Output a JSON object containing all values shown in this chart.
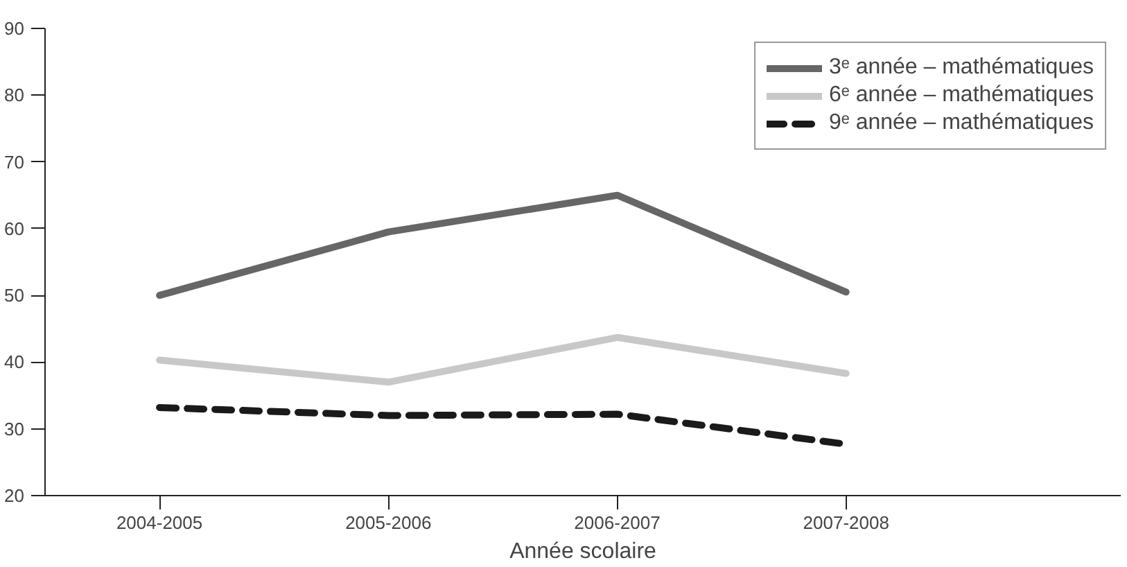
{
  "chart_data": {
    "type": "line",
    "xlabel": "Année scolaire",
    "categories": [
      "2004-2005",
      "2005-2006",
      "2006-2007",
      "2007-2008"
    ],
    "ylim": [
      20,
      90
    ],
    "yticks": [
      20,
      30,
      40,
      50,
      60,
      70,
      80,
      90
    ],
    "grid": false,
    "legend": "top right",
    "series": [
      {
        "name": "3ᵉ année – mathématiques",
        "color": "#666666",
        "line_style": "solid",
        "values": [
          50,
          59.5,
          65,
          50.5
        ]
      },
      {
        "name": "6ᵉ année – mathématiques",
        "color": "#c8c8c8",
        "line_style": "solid",
        "values": [
          40.3,
          37,
          43.7,
          38.3
        ]
      },
      {
        "name": "9ᵉ année – mathématiques",
        "color": "#1a1a1a",
        "line_style": "dashed",
        "values": [
          33.2,
          32,
          32.2,
          27.7
        ]
      }
    ]
  }
}
